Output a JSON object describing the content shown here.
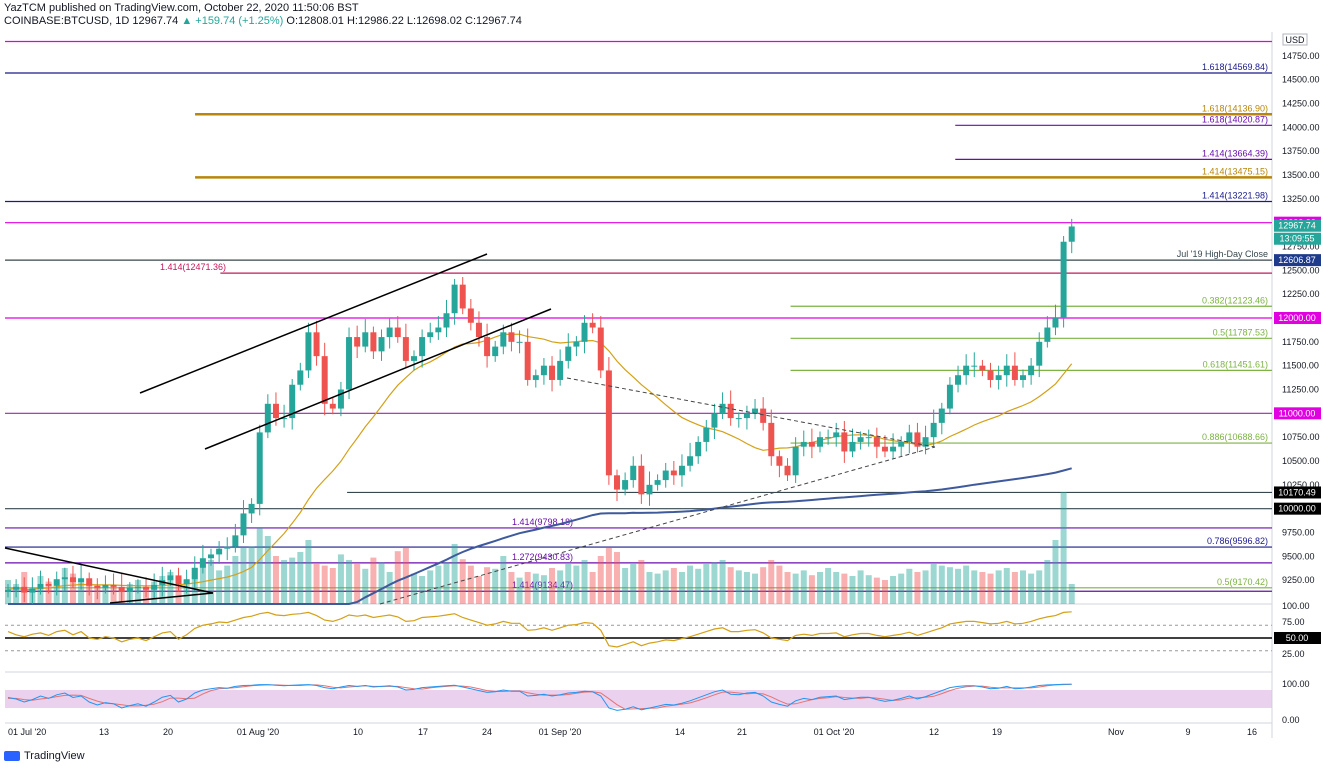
{
  "header": {
    "publisher_line": "YazTCM published on TradingView.com, October 22, 2020 11:50:06 BST",
    "symbol": "COINBASE:BTCUSD, 1D",
    "last": "12967.74",
    "change": "▲ +159.74 (+1.25%)",
    "ohlc": "O:12808.01  H:12986.22  L:12698.02  C:12967.74"
  },
  "footer": {
    "brand": "TradingView"
  },
  "currency_badge": "USD",
  "colors": {
    "up": "#26a69a",
    "down": "#ef5350",
    "magenta": "#e000e0",
    "gold": "#b8860b",
    "navy": "#1a1a8c",
    "purple": "#6a0dad",
    "ma_gold": "#d4a017",
    "ma_blue": "#3f5a9c",
    "rsi": "#d4a017",
    "stoch_k": "#2196f3",
    "stoch_d": "#e57373",
    "stoch_band": "#e1bee7"
  },
  "chart_data": {
    "type": "candlestick",
    "title": "",
    "ylim": [
      9000,
      15000
    ],
    "price_ticks": [
      "14750.00",
      "14500.00",
      "14250.00",
      "14000.00",
      "13750.00",
      "13500.00",
      "13250.00",
      "13000.00",
      "12750.00",
      "12500.00",
      "12250.00",
      "12000.00",
      "11750.00",
      "11500.00",
      "11250.00",
      "11000.00",
      "10750.00",
      "10500.00",
      "10250.00",
      "10000.00",
      "9750.00",
      "9500.00",
      "9250.00"
    ],
    "time_labels": [
      "01 Jul '20",
      "13",
      "20",
      "01 Aug '20",
      "10",
      "17",
      "24",
      "01 Sep '20",
      "14",
      "21",
      "01 Oct '20",
      "12",
      "19",
      "Nov",
      "9",
      "16"
    ],
    "closes": [
      9150,
      9180,
      9120,
      9160,
      9210,
      9190,
      9260,
      9280,
      9230,
      9270,
      9190,
      9170,
      9200,
      9180,
      9130,
      9170,
      9180,
      9150,
      9200,
      9250,
      9300,
      9210,
      9260,
      9380,
      9480,
      9520,
      9580,
      9600,
      9720,
      9950,
      10050,
      10800,
      11100,
      10950,
      10950,
      11300,
      11450,
      11850,
      11600,
      11100,
      11050,
      11250,
      11800,
      11700,
      11850,
      11650,
      11800,
      11900,
      11800,
      11550,
      11600,
      11800,
      11850,
      11900,
      12050,
      12350,
      12100,
      11950,
      11800,
      11600,
      11700,
      11850,
      11750,
      11750,
      11350,
      11400,
      11500,
      11350,
      11550,
      11700,
      11750,
      11950,
      11900,
      11450,
      10350,
      10200,
      10300,
      10450,
      10150,
      10250,
      10300,
      10400,
      10350,
      10450,
      10550,
      10700,
      10850,
      11000,
      11100,
      10950,
      10950,
      11000,
      11050,
      10900,
      10550,
      10450,
      10350,
      10650,
      10700,
      10650,
      10750,
      10750,
      10800,
      10600,
      10700,
      10750,
      10750,
      10650,
      10600,
      10650,
      10700,
      10800,
      10650,
      10750,
      10900,
      11050,
      11300,
      11400,
      11500,
      11500,
      11450,
      11350,
      11400,
      11500,
      11350,
      11400,
      11500,
      11750,
      11900,
      12000,
      12800,
      12960
    ],
    "volumes": [
      30,
      25,
      40,
      20,
      35,
      28,
      22,
      45,
      38,
      30,
      26,
      24,
      20,
      22,
      18,
      25,
      30,
      20,
      28,
      35,
      40,
      25,
      30,
      45,
      50,
      55,
      42,
      48,
      60,
      70,
      72,
      95,
      85,
      60,
      55,
      58,
      65,
      80,
      50,
      48,
      45,
      62,
      55,
      50,
      44,
      58,
      52,
      40,
      66,
      70,
      38,
      35,
      42,
      48,
      52,
      75,
      56,
      48,
      35,
      46,
      44,
      60,
      40,
      33,
      40,
      38,
      36,
      45,
      42,
      50,
      48,
      55,
      40,
      60,
      70,
      65,
      45,
      50,
      55,
      40,
      38,
      42,
      45,
      40,
      48,
      44,
      50,
      52,
      55,
      46,
      42,
      40,
      38,
      46,
      55,
      48,
      40,
      38,
      42,
      36,
      40,
      45,
      40,
      38,
      35,
      42,
      36,
      33,
      30,
      35,
      38,
      44,
      40,
      42,
      50,
      48,
      46,
      44,
      48,
      42,
      40,
      38,
      42,
      45,
      40,
      42,
      38,
      42,
      55,
      80,
      140,
      25
    ],
    "rsi": [
      60,
      55,
      52,
      56,
      58,
      54,
      60,
      62,
      55,
      60,
      50,
      48,
      52,
      50,
      44,
      48,
      50,
      46,
      52,
      58,
      60,
      48,
      55,
      65,
      70,
      72,
      75,
      74,
      78,
      82,
      84,
      88,
      90,
      86,
      85,
      87,
      88,
      90,
      85,
      78,
      76,
      80,
      86,
      84,
      86,
      82,
      84,
      86,
      83,
      76,
      77,
      82,
      83,
      84,
      86,
      88,
      82,
      78,
      74,
      70,
      72,
      76,
      73,
      73,
      62,
      63,
      66,
      62,
      66,
      70,
      71,
      74,
      73,
      62,
      38,
      36,
      40,
      44,
      38,
      42,
      44,
      47,
      46,
      49,
      52,
      56,
      60,
      64,
      66,
      60,
      60,
      62,
      63,
      58,
      50,
      48,
      46,
      54,
      56,
      54,
      57,
      57,
      58,
      52,
      55,
      57,
      57,
      54,
      52,
      54,
      56,
      59,
      54,
      58,
      62,
      66,
      72,
      74,
      76,
      76,
      74,
      72,
      73,
      76,
      72,
      73,
      76,
      80,
      83,
      85,
      90,
      91
    ],
    "stoch_k": [
      55,
      50,
      40,
      48,
      60,
      52,
      64,
      70,
      55,
      60,
      40,
      30,
      38,
      34,
      20,
      28,
      34,
      26,
      40,
      56,
      62,
      40,
      50,
      70,
      80,
      84,
      88,
      86,
      92,
      95,
      96,
      98,
      98,
      96,
      94,
      96,
      97,
      98,
      95,
      88,
      84,
      90,
      95,
      92,
      95,
      90,
      92,
      94,
      90,
      80,
      82,
      88,
      90,
      92,
      94,
      96,
      90,
      84,
      78,
      72,
      74,
      80,
      76,
      76,
      60,
      62,
      66,
      60,
      64,
      70,
      72,
      76,
      74,
      60,
      20,
      12,
      16,
      24,
      14,
      20,
      26,
      32,
      30,
      36,
      44,
      54,
      64,
      74,
      80,
      66,
      64,
      70,
      72,
      60,
      40,
      32,
      26,
      44,
      52,
      48,
      56,
      58,
      60,
      48,
      52,
      56,
      56,
      48,
      42,
      46,
      52,
      60,
      50,
      58,
      68,
      78,
      88,
      92,
      94,
      94,
      90,
      84,
      86,
      92,
      84,
      86,
      90,
      95,
      97,
      98,
      99,
      99
    ],
    "stoch_d": [
      52,
      52,
      48,
      46,
      50,
      53,
      58,
      62,
      63,
      62,
      52,
      43,
      36,
      34,
      31,
      27,
      27,
      29,
      33,
      41,
      53,
      53,
      51,
      53,
      67,
      78,
      84,
      86,
      88,
      91,
      94,
      96,
      97,
      97,
      96,
      95,
      95,
      97,
      97,
      94,
      89,
      87,
      90,
      92,
      94,
      92,
      92,
      92,
      92,
      88,
      84,
      83,
      87,
      90,
      92,
      94,
      93,
      90,
      84,
      78,
      75,
      75,
      77,
      77,
      71,
      66,
      63,
      63,
      63,
      65,
      69,
      73,
      74,
      70,
      51,
      31,
      16,
      17,
      18,
      19,
      20,
      26,
      29,
      33,
      37,
      45,
      54,
      64,
      73,
      73,
      70,
      67,
      69,
      67,
      57,
      44,
      33,
      34,
      41,
      48,
      52,
      54,
      58,
      55,
      53,
      52,
      55,
      53,
      49,
      45,
      47,
      53,
      54,
      56,
      59,
      68,
      78,
      86,
      91,
      93,
      93,
      89,
      87,
      87,
      87,
      87,
      87,
      90,
      94,
      97,
      98,
      99
    ],
    "ma_long_label": "",
    "ma_short_label": "",
    "levels": [
      {
        "price": 14900,
        "label": "",
        "color": "#e000e0",
        "box": "",
        "box_color": "#e000e0",
        "from": 0.0
      },
      {
        "price": 14570,
        "label": "1.618(14569.84)",
        "color": "#1a1a8c",
        "box": "",
        "box_color": "",
        "from": 0.0
      },
      {
        "price": 14137,
        "label": "1.618(14136.90)",
        "color": "#b8860b",
        "box": "",
        "box_color": "",
        "from": 0.15
      },
      {
        "price": 14021,
        "label": "1.618(14020.87)",
        "color": "#6a0dad",
        "box": "",
        "box_color": "",
        "from": 0.75
      },
      {
        "price": 13664,
        "label": "1.414(13664.39)",
        "color": "#6a0dad",
        "box": "",
        "box_color": "",
        "from": 0.75
      },
      {
        "price": 13475,
        "label": "1.414(13475.15)",
        "color": "#b8860b",
        "box": "",
        "box_color": "",
        "from": 0.15
      },
      {
        "price": 13222,
        "label": "1.414(13221.98)",
        "color": "#1a1a8c",
        "box": "",
        "box_color": "",
        "from": 0.0
      },
      {
        "price": 13000,
        "label": "",
        "color": "#e000e0",
        "box": "13000.00",
        "box_color": "#e000e0",
        "from": 0.0
      },
      {
        "price": 12607,
        "label": "Jul '19 High-Day Close",
        "color": "#37474f",
        "box": "12606.87",
        "box_color": "#1e3a8a",
        "from": 0.0
      },
      {
        "price": 12471,
        "label": "1.414(12471.36)",
        "color": "#c2185b",
        "box": "",
        "box_color": "",
        "from": 0.17
      },
      {
        "price": 12123,
        "label": "0.382(12123.46)",
        "color": "#7cb342",
        "box": "",
        "box_color": "",
        "from": 0.62
      },
      {
        "price": 12000,
        "label": "",
        "color": "#e000e0",
        "box": "12000.00",
        "box_color": "#e000e0",
        "from": 0.0
      },
      {
        "price": 11787,
        "label": "0.5(11787.53)",
        "color": "#7cb342",
        "box": "",
        "box_color": "",
        "from": 0.62
      },
      {
        "price": 11451,
        "label": "0.618(11451.61)",
        "color": "#7cb342",
        "box": "",
        "box_color": "",
        "from": 0.62
      },
      {
        "price": 11000,
        "label": "",
        "color": "#9c27b0",
        "box": "11000.00",
        "box_color": "#e000e0",
        "from": 0.0
      },
      {
        "price": 10688,
        "label": "0.886(10688.66)",
        "color": "#7cb342",
        "box": "",
        "box_color": "",
        "from": 0.62
      },
      {
        "price": 10170,
        "label": "",
        "color": "#37474f",
        "box": "10170.49",
        "box_color": "#000000",
        "from": 0.27
      },
      {
        "price": 10000,
        "label": "",
        "color": "#37474f",
        "box": "10000.00",
        "box_color": "#000000",
        "from": 0.0
      },
      {
        "price": 9798,
        "label": "1.414(9798.18)",
        "color": "#6a0dad",
        "box": "",
        "box_color": "",
        "from": 0.0
      },
      {
        "price": 9597,
        "label": "0.786(9596.82)",
        "color": "#1a1a8c",
        "box": "",
        "box_color": "",
        "from": 0.0
      },
      {
        "price": 9431,
        "label": "1.272(9430.83)",
        "color": "#6a0dad",
        "box": "",
        "box_color": "",
        "from": 0.0
      },
      {
        "price": 9170,
        "label": "0.5(9170.42)",
        "color": "#7cb342",
        "box": "",
        "box_color": "",
        "from": 0.0
      },
      {
        "price": 9134,
        "label": "1.414(9134.47)",
        "color": "#6a0dad",
        "box": "",
        "box_color": "",
        "from": 0.0
      }
    ],
    "live_boxes": [
      {
        "text": "12967.74",
        "color": "#26a69a"
      },
      {
        "text": "13:09:55",
        "color": "#26a69a"
      }
    ],
    "rsi_ticks": [
      "100.00",
      "75.00",
      "50.00",
      "25.00"
    ],
    "rsi_level_box": "50.00",
    "stoch_ticks": [
      "100.00",
      "0.00"
    ]
  }
}
